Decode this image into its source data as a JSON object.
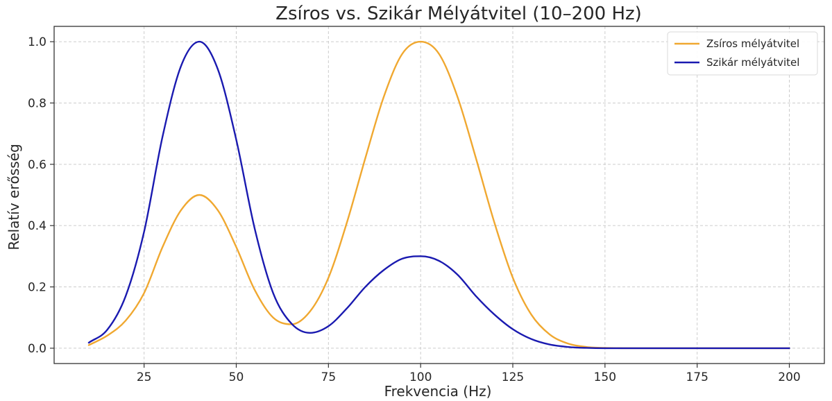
{
  "chart_data": {
    "type": "line",
    "title": "Zsíros vs. Szikár Mélyátvitel (10–200 Hz)",
    "xlabel": "Frekvencia (Hz)",
    "ylabel": "Relatív erősség",
    "xlim": [
      0.6,
      209.5
    ],
    "ylim": [
      -0.05,
      1.05
    ],
    "xticks": [
      25,
      50,
      75,
      100,
      125,
      150,
      175,
      200
    ],
    "yticks": [
      0.0,
      0.2,
      0.4,
      0.6,
      0.8,
      1.0
    ],
    "grid": true,
    "legend": "top-right",
    "x": [
      10,
      15,
      20,
      25,
      30,
      35,
      40,
      45,
      50,
      55,
      60,
      65,
      70,
      75,
      80,
      85,
      90,
      95,
      100,
      105,
      110,
      115,
      120,
      125,
      130,
      135,
      140,
      145,
      150,
      160,
      170,
      180,
      190,
      200
    ],
    "series": [
      {
        "name": "Zsíros mélyátvitel",
        "color": "#F0A830",
        "values": [
          0.01,
          0.041,
          0.09,
          0.18,
          0.33,
          0.45,
          0.5,
          0.45,
          0.33,
          0.19,
          0.1,
          0.078,
          0.12,
          0.23,
          0.41,
          0.62,
          0.82,
          0.96,
          1.0,
          0.96,
          0.82,
          0.62,
          0.41,
          0.23,
          0.11,
          0.045,
          0.015,
          0.004,
          0.001,
          0.0,
          0.0,
          0.0,
          0.0,
          0.0
        ]
      },
      {
        "name": "Szikár mélyátvitel",
        "color": "#1A1AB0",
        "values": [
          0.018,
          0.06,
          0.17,
          0.38,
          0.69,
          0.92,
          1.0,
          0.91,
          0.68,
          0.39,
          0.18,
          0.08,
          0.05,
          0.072,
          0.13,
          0.2,
          0.255,
          0.292,
          0.3,
          0.285,
          0.24,
          0.17,
          0.11,
          0.062,
          0.03,
          0.012,
          0.004,
          0.001,
          0.0,
          0.0,
          0.0,
          0.0,
          0.0,
          0.0
        ]
      }
    ]
  }
}
